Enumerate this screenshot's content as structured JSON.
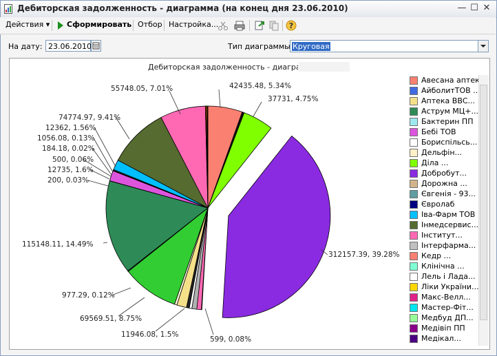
{
  "window": {
    "title": "Дебиторская задолженность - диаграмма (на конец дня 23.06.2010)",
    "minimize_glyph": "—",
    "maximize_glyph": "☐",
    "close_glyph": "✕"
  },
  "toolbar": {
    "actions_label": "Действия",
    "actions_arrow": "▾",
    "generate_label": "Сформировать",
    "filter_label": "Отбор",
    "settings_label": "Настройка...",
    "help_glyph": "?"
  },
  "form": {
    "date_label": "На дату:",
    "date_value": "23.06.2010",
    "chart_type_label": "Тип диаграммы:",
    "chart_type_value": "Круговая"
  },
  "chart_data": {
    "type": "pie",
    "title": "Дебиторская задолженность - диаграмма:",
    "labels": [
      "42435.48, 5.34%",
      "37731, 4.75%",
      "312157.39, 39.28%",
      "599, 0.08%",
      "11946.08, 1.5%",
      "69569.51, 8.75%",
      "977.29, 0.12%",
      "115148.11, 14.49%",
      "200, 0.03%",
      "12735, 1.6%",
      "500, 0.06%",
      "184.18, 0.02%",
      "1056.08, 0.13%",
      "12362, 1.56%",
      "74774.97, 9.41%",
      "55748.05, 7.01%"
    ],
    "slices": [
      {
        "value": 42435.48,
        "percent": 5.34,
        "color": "#fa8072"
      },
      {
        "value": 2500,
        "percent": 0.31,
        "color": "#111111"
      },
      {
        "value": 37731,
        "percent": 4.75,
        "color": "#80ff00"
      },
      {
        "value": 312157.39,
        "percent": 39.28,
        "color": "#8a2be2",
        "exploded": true
      },
      {
        "value": 599,
        "percent": 0.08,
        "color": "#ff1493"
      },
      {
        "value": 5600,
        "percent": 0.7,
        "color": "#ff69b4"
      },
      {
        "value": 6000,
        "percent": 0.75,
        "color": "#b0b0b0"
      },
      {
        "value": 3200,
        "percent": 0.4,
        "color": "#ffffff"
      },
      {
        "value": 3500,
        "percent": 0.44,
        "color": "#222222"
      },
      {
        "value": 11946.08,
        "percent": 1.5,
        "color": "#f5e08a"
      },
      {
        "value": 3000,
        "percent": 0.38,
        "color": "#fff8dc"
      },
      {
        "value": 69569.51,
        "percent": 8.75,
        "color": "#32cd32"
      },
      {
        "value": 977.29,
        "percent": 0.12,
        "color": "#2e8b57"
      },
      {
        "value": 115148.11,
        "percent": 14.49,
        "color": "#2e8b57"
      },
      {
        "value": 200,
        "percent": 0.03,
        "color": "#dda0dd"
      },
      {
        "value": 12735,
        "percent": 1.6,
        "color": "#dd55dd"
      },
      {
        "value": 500,
        "percent": 0.06,
        "color": "#000080"
      },
      {
        "value": 184.18,
        "percent": 0.02,
        "color": "#4169e1"
      },
      {
        "value": 1056.08,
        "percent": 0.13,
        "color": "#5f9ea0"
      },
      {
        "value": 12362,
        "percent": 1.56,
        "color": "#00bfff"
      },
      {
        "value": 74774.97,
        "percent": 9.41,
        "color": "#556b2f"
      },
      {
        "value": 55748.05,
        "percent": 7.01,
        "color": "#ff69b4"
      },
      {
        "value": 1200,
        "percent": 0.15,
        "color": "#ff4500"
      },
      {
        "value": 1000,
        "percent": 0.13,
        "color": "#ffd700"
      },
      {
        "value": 900,
        "percent": 0.11,
        "color": "#8b0000"
      }
    ],
    "legend": [
      {
        "label": "Авесана аптека",
        "color": "#fa8072"
      },
      {
        "label": "АйболитТОВ ...",
        "color": "#4169e1"
      },
      {
        "label": "Аптека ВВС...",
        "color": "#f5e08a"
      },
      {
        "label": "Аструм МЦ+...",
        "color": "#2e8b57"
      },
      {
        "label": "Бактерин ПП",
        "color": "#a0e8f0"
      },
      {
        "label": "Бебі ТОВ",
        "color": "#dd55dd"
      },
      {
        "label": "Бориспільсь...",
        "color": "#ffffff"
      },
      {
        "label": "Дельфін...",
        "color": "#fff0c8"
      },
      {
        "label": "Діла ...",
        "color": "#80ff00"
      },
      {
        "label": "Добробут...",
        "color": "#8a2be2"
      },
      {
        "label": "Дорожна ...",
        "color": "#d2b48c"
      },
      {
        "label": "Євгенія - 93...",
        "color": "#5f9ea0"
      },
      {
        "label": "Євролаб",
        "color": "#000080"
      },
      {
        "label": "Іва-Фарм ТОВ",
        "color": "#00bfff"
      },
      {
        "label": "Інмедсервис...",
        "color": "#556b2f"
      },
      {
        "label": "Інститут...",
        "color": "#ff69b4"
      },
      {
        "label": "Інтерфарма...",
        "color": "#c0c0c0"
      },
      {
        "label": "Кедр ...",
        "color": "#fa8072"
      },
      {
        "label": "Клінічна ...",
        "color": "#7fffd4"
      },
      {
        "label": "Лель і Лада...",
        "color": "#ffffff"
      },
      {
        "label": "Ліки України...",
        "color": "#ffd700"
      },
      {
        "label": "Макс-Велл...",
        "color": "#e0218a"
      },
      {
        "label": "Мастер-Фіт...",
        "color": "#00e5ee"
      },
      {
        "label": "Медбуд ДП...",
        "color": "#98fb98"
      },
      {
        "label": "Медівіп ПП",
        "color": "#8b008b"
      },
      {
        "label": "Медікал...",
        "color": "#4b0082"
      }
    ]
  }
}
